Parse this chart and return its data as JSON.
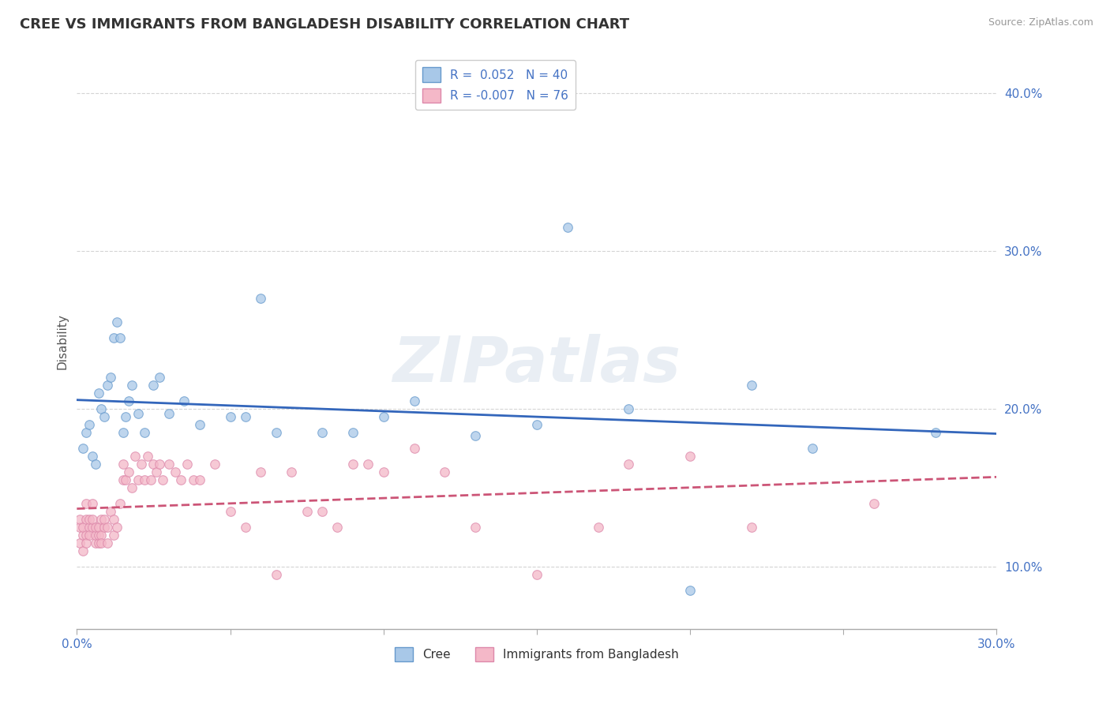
{
  "title": "CREE VS IMMIGRANTS FROM BANGLADESH DISABILITY CORRELATION CHART",
  "source": "Source: ZipAtlas.com",
  "ylabel": "Disability",
  "xlim": [
    0.0,
    0.3
  ],
  "ylim": [
    0.06,
    0.425
  ],
  "yticks": [
    0.1,
    0.2,
    0.3,
    0.4
  ],
  "ytick_labels": [
    "10.0%",
    "20.0%",
    "30.0%",
    "40.0%"
  ],
  "xticks": [
    0.0,
    0.05,
    0.1,
    0.15,
    0.2,
    0.25,
    0.3
  ],
  "xtick_labels": [
    "0.0%",
    "",
    "",
    "",
    "",
    "",
    "30.0%"
  ],
  "series": [
    {
      "name": "Cree",
      "R": 0.052,
      "N": 40,
      "color": "#a8c8e8",
      "edge_color": "#6699cc",
      "line_color": "#3366bb",
      "line_style": "solid",
      "x": [
        0.002,
        0.003,
        0.004,
        0.005,
        0.006,
        0.007,
        0.008,
        0.009,
        0.01,
        0.011,
        0.012,
        0.013,
        0.014,
        0.015,
        0.016,
        0.017,
        0.018,
        0.02,
        0.022,
        0.025,
        0.027,
        0.03,
        0.035,
        0.04,
        0.05,
        0.055,
        0.06,
        0.065,
        0.08,
        0.09,
        0.1,
        0.11,
        0.13,
        0.15,
        0.16,
        0.18,
        0.2,
        0.22,
        0.24,
        0.28
      ],
      "y": [
        0.175,
        0.185,
        0.19,
        0.17,
        0.165,
        0.21,
        0.2,
        0.195,
        0.215,
        0.22,
        0.245,
        0.255,
        0.245,
        0.185,
        0.195,
        0.205,
        0.215,
        0.197,
        0.185,
        0.215,
        0.22,
        0.197,
        0.205,
        0.19,
        0.195,
        0.195,
        0.27,
        0.185,
        0.185,
        0.185,
        0.195,
        0.205,
        0.183,
        0.19,
        0.315,
        0.2,
        0.085,
        0.215,
        0.175,
        0.185
      ]
    },
    {
      "name": "Immigrants from Bangladesh",
      "R": -0.007,
      "N": 76,
      "color": "#f4b8c8",
      "edge_color": "#dd88aa",
      "line_color": "#cc5577",
      "line_style": "dashed",
      "x": [
        0.001,
        0.001,
        0.001,
        0.002,
        0.002,
        0.002,
        0.003,
        0.003,
        0.003,
        0.003,
        0.004,
        0.004,
        0.004,
        0.005,
        0.005,
        0.005,
        0.006,
        0.006,
        0.006,
        0.007,
        0.007,
        0.007,
        0.008,
        0.008,
        0.008,
        0.009,
        0.009,
        0.01,
        0.01,
        0.011,
        0.012,
        0.012,
        0.013,
        0.014,
        0.015,
        0.015,
        0.016,
        0.017,
        0.018,
        0.019,
        0.02,
        0.021,
        0.022,
        0.023,
        0.024,
        0.025,
        0.026,
        0.027,
        0.028,
        0.03,
        0.032,
        0.034,
        0.036,
        0.038,
        0.04,
        0.045,
        0.05,
        0.055,
        0.06,
        0.065,
        0.07,
        0.075,
        0.08,
        0.085,
        0.09,
        0.095,
        0.1,
        0.11,
        0.12,
        0.13,
        0.15,
        0.17,
        0.18,
        0.2,
        0.22,
        0.26
      ],
      "y": [
        0.125,
        0.115,
        0.13,
        0.12,
        0.11,
        0.125,
        0.13,
        0.12,
        0.14,
        0.115,
        0.125,
        0.13,
        0.12,
        0.14,
        0.125,
        0.13,
        0.115,
        0.12,
        0.125,
        0.115,
        0.12,
        0.125,
        0.13,
        0.12,
        0.115,
        0.125,
        0.13,
        0.115,
        0.125,
        0.135,
        0.12,
        0.13,
        0.125,
        0.14,
        0.155,
        0.165,
        0.155,
        0.16,
        0.15,
        0.17,
        0.155,
        0.165,
        0.155,
        0.17,
        0.155,
        0.165,
        0.16,
        0.165,
        0.155,
        0.165,
        0.16,
        0.155,
        0.165,
        0.155,
        0.155,
        0.165,
        0.135,
        0.125,
        0.16,
        0.095,
        0.16,
        0.135,
        0.135,
        0.125,
        0.165,
        0.165,
        0.16,
        0.175,
        0.16,
        0.125,
        0.095,
        0.125,
        0.165,
        0.17,
        0.125,
        0.14
      ]
    }
  ],
  "legend_R_label": [
    "R =  0.052",
    "R = -0.007"
  ],
  "legend_N_label": [
    "N = 40",
    "N = 76"
  ],
  "watermark_text": "ZIPatlas",
  "background_color": "#ffffff",
  "grid_color": "#d0d0d0",
  "title_color": "#333333",
  "source_color": "#999999",
  "ylabel_color": "#555555",
  "tick_color": "#4472c4"
}
